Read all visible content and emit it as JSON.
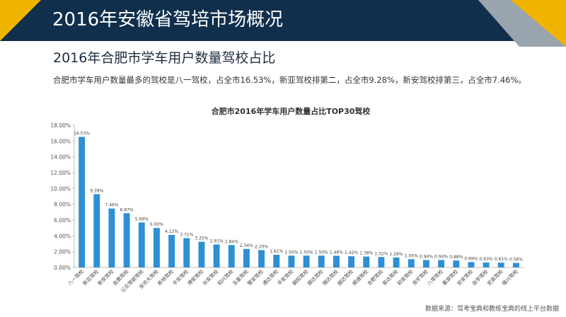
{
  "page": {
    "header_title": "2016年安徽省驾培市场概况",
    "subtitle": "2016年合肥市学车用户数量驾校占比",
    "description": "合肥市学车用户数量最多的驾校是八一驾校，占全市16.53%，新亚驾校排第二，占全市9.28%，新安驾校排第三，占全市7.46%。",
    "source": "数据来源：驾考宝典和教练宝典的线上平台数据"
  },
  "colors": {
    "header_bg": "#0f2f4d",
    "accent_yellow": "#f0b400",
    "accent_gray": "#9aa4ad",
    "bar": "#2e8fd4"
  },
  "chart_data": {
    "type": "bar",
    "title": "合肥市2016年学车用户数量占比TOP30驾校",
    "xlabel": "",
    "ylabel": "",
    "ylim": [
      0,
      18
    ],
    "yticks": [
      0,
      2,
      4,
      6,
      8,
      10,
      12,
      14,
      16,
      18
    ],
    "ytick_labels": [
      "0.00%",
      "2.00%",
      "4.00%",
      "6.00%",
      "8.00%",
      "10.00%",
      "12.00%",
      "14.00%",
      "16.00%",
      "18.00%"
    ],
    "grid": false,
    "legend": "none",
    "categories": [
      "八一驾校",
      "新亚驾校",
      "新安驾校",
      "金鹿驾校",
      "公交驾驶驾校",
      "安农大驾校",
      "新地驾校",
      "平安驾校",
      "博安驾校",
      "长安驾校",
      "和兴驾校",
      "五星驾校",
      "警安驾校",
      "通达驾校",
      "平安驾校",
      "朝阳驾校",
      "顺达驾校",
      "瑞达驾校",
      "越达驾校",
      "顺通驾校",
      "合肥驾校",
      "易达驾校",
      "和安驾校",
      "浩宇驾校",
      "八零驾校",
      "巢湖驾校",
      "宏安驾校",
      "自学驾校",
      "宏县驾校",
      "隆兴驾校"
    ],
    "values": [
      16.53,
      9.28,
      7.46,
      6.87,
      5.69,
      5.0,
      4.12,
      3.71,
      3.25,
      2.91,
      2.84,
      2.34,
      2.2,
      1.61,
      1.5,
      1.5,
      1.5,
      1.48,
      1.42,
      1.38,
      1.32,
      1.26,
      1.05,
      0.94,
      0.94,
      0.88,
      0.69,
      0.63,
      0.61,
      0.58
    ],
    "value_labels": [
      "16.53%",
      "9.28%",
      "7.46%",
      "6.87%",
      "5.69%",
      "5.00%",
      "4.12%",
      "3.71%",
      "3.25%",
      "2.91%",
      "2.84%",
      "2.34%",
      "2.20%",
      "1.61%",
      "1.50%",
      "1.50%",
      "1.50%",
      "1.48%",
      "1.42%",
      "1.38%",
      "1.32%",
      "1.26%",
      "1.05%",
      "0.94%",
      "0.94%",
      "0.88%",
      "0.69%",
      "0.63%",
      "0.61%",
      "0.58%"
    ]
  }
}
